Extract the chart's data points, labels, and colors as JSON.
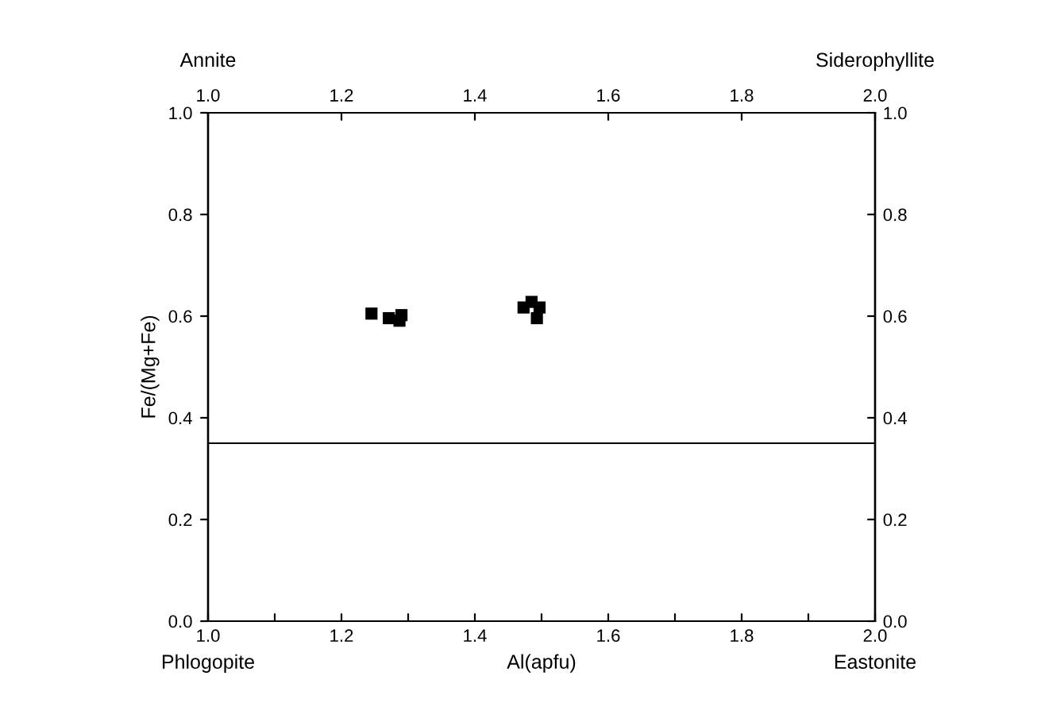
{
  "chart_data": {
    "type": "scatter",
    "xlabel": "Al(apfu)",
    "ylabel": "Fe/(Mg+Fe)",
    "series": [
      {
        "color": "#000000",
        "x": [
          1.245,
          1.271,
          1.287,
          1.29,
          1.473,
          1.485,
          1.493,
          1.497
        ],
        "values": [
          0.605,
          0.596,
          0.591,
          0.602,
          0.617,
          0.628,
          0.596,
          0.617
        ]
      }
    ],
    "marker": "square",
    "xlim": [
      1.0,
      2.0
    ],
    "xticks": [
      {
        "value": 1,
        "label": "1.0"
      },
      {
        "value": 1.1,
        "label": null
      },
      1.2,
      {
        "value": 1.3,
        "label": null
      },
      1.4,
      {
        "value": 1.5,
        "label": null
      },
      1.6,
      {
        "value": 1.7,
        "label": null
      },
      1.8,
      {
        "value": 1.9,
        "label": null
      },
      {
        "value": 2,
        "label": "2.0"
      }
    ],
    "x2lim": [
      1.0,
      2.0
    ],
    "x2ticks": [
      {
        "value": 1,
        "label": "1.0"
      },
      1.2,
      1.4,
      1.6,
      1.8,
      {
        "value": 2,
        "label": "2.0"
      }
    ],
    "ylim": [
      0.0,
      1.0
    ],
    "yticks": [
      {
        "value": 0,
        "label": "0.0"
      },
      0.2,
      0.4,
      0.6,
      0.8,
      {
        "value": 1,
        "label": "1.0"
      }
    ],
    "y2lim": [
      0.0,
      1.0
    ],
    "y2ticks": [
      {
        "value": 0,
        "label": "0.0"
      },
      0.2,
      0.4,
      0.6,
      0.8,
      {
        "value": 1,
        "label": "1.0"
      }
    ],
    "ref_lines": [
      {
        "axis": "y",
        "value": 0.35,
        "color": "#000000"
      }
    ],
    "annotations": [
      "Annite",
      "Siderophyllite",
      "Phlogopite",
      "Eastonite"
    ],
    "grid": false,
    "legend": false
  }
}
